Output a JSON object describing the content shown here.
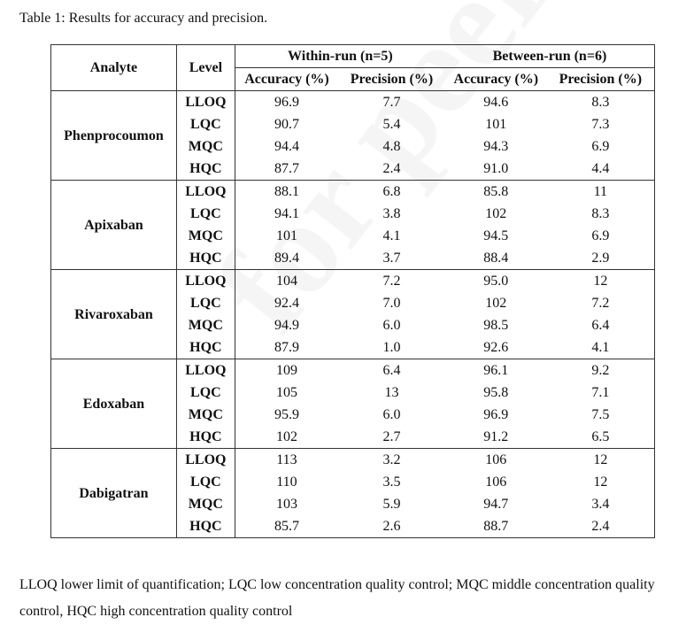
{
  "caption": "Table 1: Results for accuracy and precision.",
  "watermark": "for peer review",
  "headers": {
    "analyte": "Analyte",
    "level": "Level",
    "within_run": "Within-run (n=5)",
    "between_run": "Between-run (n=6)",
    "accuracy": "Accuracy (%)",
    "precision": "Precision (%)"
  },
  "groups": [
    {
      "analyte": "Phenprocoumon",
      "rows": [
        {
          "level": "LLOQ",
          "values": [
            "96.9",
            "7.7",
            "94.6",
            "8.3"
          ]
        },
        {
          "level": "LQC",
          "values": [
            "90.7",
            "5.4",
            "101",
            "7.3"
          ]
        },
        {
          "level": "MQC",
          "values": [
            "94.4",
            "4.8",
            "94.3",
            "6.9"
          ]
        },
        {
          "level": "HQC",
          "values": [
            "87.7",
            "2.4",
            "91.0",
            "4.4"
          ]
        }
      ]
    },
    {
      "analyte": "Apixaban",
      "rows": [
        {
          "level": "LLOQ",
          "values": [
            "88.1",
            "6.8",
            "85.8",
            "11"
          ]
        },
        {
          "level": "LQC",
          "values": [
            "94.1",
            "3.8",
            "102",
            "8.3"
          ]
        },
        {
          "level": "MQC",
          "values": [
            "101",
            "4.1",
            "94.5",
            "6.9"
          ]
        },
        {
          "level": "HQC",
          "values": [
            "89.4",
            "3.7",
            "88.4",
            "2.9"
          ]
        }
      ]
    },
    {
      "analyte": "Rivaroxaban",
      "rows": [
        {
          "level": "LLOQ",
          "values": [
            "104",
            "7.2",
            "95.0",
            "12"
          ]
        },
        {
          "level": "LQC",
          "values": [
            "92.4",
            "7.0",
            "102",
            "7.2"
          ]
        },
        {
          "level": "MQC",
          "values": [
            "94.9",
            "6.0",
            "98.5",
            "6.4"
          ]
        },
        {
          "level": "HQC",
          "values": [
            "87.9",
            "1.0",
            "92.6",
            "4.1"
          ]
        }
      ]
    },
    {
      "analyte": "Edoxaban",
      "rows": [
        {
          "level": "LLOQ",
          "values": [
            "109",
            "6.4",
            "96.1",
            "9.2"
          ]
        },
        {
          "level": "LQC",
          "values": [
            "105",
            "13",
            "95.8",
            "7.1"
          ]
        },
        {
          "level": "MQC",
          "values": [
            "95.9",
            "6.0",
            "96.9",
            "7.5"
          ]
        },
        {
          "level": "HQC",
          "values": [
            "102",
            "2.7",
            "91.2",
            "6.5"
          ]
        }
      ]
    },
    {
      "analyte": "Dabigatran",
      "rows": [
        {
          "level": "LLOQ",
          "values": [
            "113",
            "3.2",
            "106",
            "12"
          ]
        },
        {
          "level": "LQC",
          "values": [
            "110",
            "3.5",
            "106",
            "12"
          ]
        },
        {
          "level": "MQC",
          "values": [
            "103",
            "5.9",
            "94.7",
            "3.4"
          ]
        },
        {
          "level": "HQC",
          "values": [
            "85.7",
            "2.6",
            "88.7",
            "2.4"
          ]
        }
      ]
    }
  ],
  "footnote": "LLOQ lower limit of quantification; LQC low concentration quality control; MQC middle concentration quality control, HQC high concentration quality control"
}
